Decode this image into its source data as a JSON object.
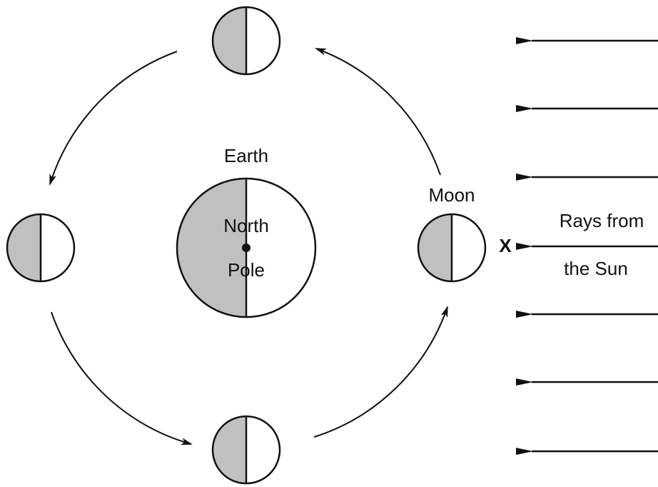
{
  "earth": {
    "label": "Earth",
    "pole": [
      "North",
      "Pole"
    ]
  },
  "moon": {
    "label": "Moon",
    "marker": "X"
  },
  "sun": {
    "label": [
      "Rays from",
      "the Sun"
    ]
  }
}
